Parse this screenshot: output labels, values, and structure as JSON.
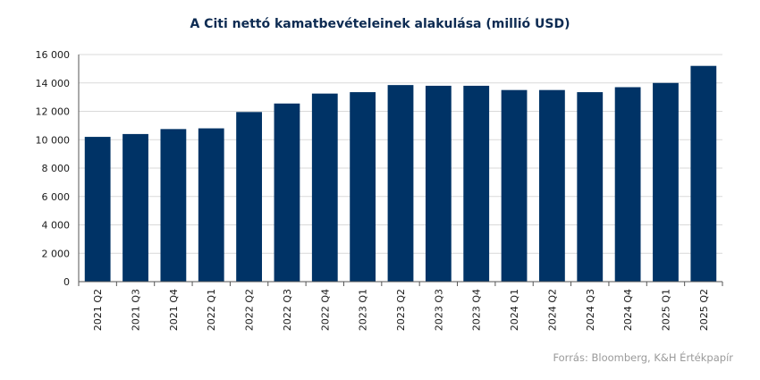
{
  "chart_data": {
    "type": "bar",
    "title": "A Citi nettó kamatbevételeinek alakulása (millió USD)",
    "categories": [
      "2021 Q2",
      "2021 Q3",
      "2021 Q4",
      "2022 Q1",
      "2022 Q2",
      "2022 Q3",
      "2022 Q4",
      "2023 Q1",
      "2023 Q2",
      "2023 Q3",
      "2023 Q4",
      "2024 Q1",
      "2024 Q2",
      "2024 Q3",
      "2024 Q4",
      "2025 Q1",
      "2025 Q2"
    ],
    "values": [
      10200,
      10400,
      10750,
      10800,
      11950,
      12550,
      13250,
      13350,
      13850,
      13800,
      13800,
      13500,
      13500,
      13350,
      13700,
      14000,
      15200
    ],
    "ylim": [
      0,
      16000
    ],
    "yticks": [
      0,
      2000,
      4000,
      6000,
      8000,
      10000,
      12000,
      14000,
      16000
    ],
    "ytick_labels": [
      "0",
      "2 000",
      "4 000",
      "6 000",
      "8 000",
      "10 000",
      "12 000",
      "14 000",
      "16 000"
    ],
    "xlabel": "",
    "ylabel": "",
    "grid": true,
    "bar_color": "#003366",
    "grid_color": "#d9d9d9"
  },
  "source": "Forrás: Bloomberg, K&H Értékpapír"
}
